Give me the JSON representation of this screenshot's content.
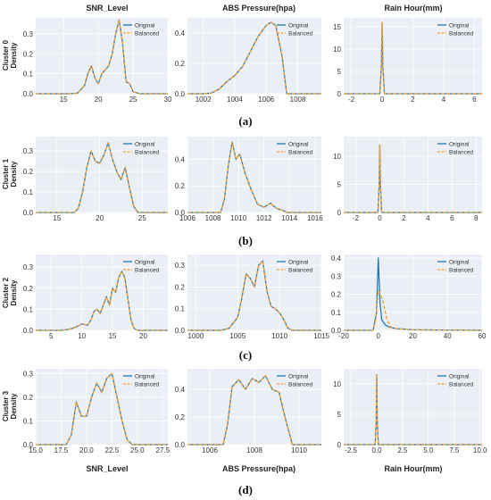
{
  "figure": {
    "column_titles": [
      "SNR_Level",
      "ABS Pressure(hpa)",
      "Rain Hour(mm)"
    ],
    "bottom_xlabels": [
      "SNR_Level",
      "ABS Pressure(hpa)",
      "Rain Hour(mm)"
    ],
    "panel_labels": [
      "(a)",
      "(b)",
      "(c)",
      "(d)"
    ],
    "row_labels": [
      "Cluster 0",
      "Cluster 1",
      "Cluster 2",
      "Cluster 3"
    ],
    "ylabel": "Density",
    "legend": [
      "Original",
      "Balanced"
    ]
  },
  "colors": {
    "original": "#1f77b4",
    "balanced": "#f0a030",
    "background": "#eaeef5",
    "grid": "#ffffff"
  },
  "chart_data": [
    {
      "type": "line",
      "row": 0,
      "col": 0,
      "xlim": [
        11,
        30
      ],
      "ylim": [
        0,
        0.38
      ],
      "xticks": [
        15,
        20,
        25,
        30
      ],
      "yticks": [
        0.0,
        0.1,
        0.2,
        0.3
      ],
      "series": [
        {
          "name": "Original",
          "x": [
            11,
            16,
            17,
            18,
            18.5,
            19,
            19.5,
            20,
            20.5,
            21,
            21.5,
            22,
            22.5,
            23,
            23.5,
            24,
            24.5,
            25,
            26,
            30
          ],
          "y": [
            0,
            0,
            0.003,
            0.04,
            0.1,
            0.14,
            0.08,
            0.05,
            0.1,
            0.12,
            0.14,
            0.2,
            0.3,
            0.37,
            0.25,
            0.06,
            0.05,
            0.01,
            0,
            0
          ]
        },
        {
          "name": "Balanced",
          "x": [
            11,
            16,
            17,
            18,
            18.5,
            19,
            19.5,
            20,
            20.5,
            21,
            21.5,
            22,
            22.5,
            23,
            23.5,
            24,
            24.5,
            25,
            26,
            30
          ],
          "y": [
            0,
            0,
            0.003,
            0.04,
            0.1,
            0.14,
            0.08,
            0.05,
            0.1,
            0.12,
            0.14,
            0.2,
            0.3,
            0.37,
            0.25,
            0.06,
            0.05,
            0.01,
            0,
            0
          ]
        }
      ]
    },
    {
      "type": "line",
      "row": 0,
      "col": 1,
      "xlim": [
        1001,
        1009.5
      ],
      "ylim": [
        0,
        0.5
      ],
      "xticks": [
        1002,
        1004,
        1006,
        1008
      ],
      "yticks": [
        0.0,
        0.2,
        0.4
      ],
      "series": [
        {
          "name": "Original",
          "x": [
            1001,
            1002,
            1002.5,
            1003,
            1003.5,
            1004,
            1004.5,
            1005,
            1005.5,
            1006,
            1006.3,
            1006.6,
            1007,
            1007.3,
            1009.5
          ],
          "y": [
            0,
            0,
            0.004,
            0.03,
            0.08,
            0.12,
            0.18,
            0.28,
            0.38,
            0.45,
            0.47,
            0.45,
            0.25,
            0,
            0
          ]
        },
        {
          "name": "Balanced",
          "x": [
            1001,
            1002,
            1002.5,
            1003,
            1003.5,
            1004,
            1004.5,
            1005,
            1005.5,
            1006,
            1006.3,
            1006.6,
            1007,
            1007.3,
            1009.5
          ],
          "y": [
            0,
            0,
            0.004,
            0.03,
            0.08,
            0.12,
            0.18,
            0.28,
            0.38,
            0.45,
            0.47,
            0.45,
            0.25,
            0,
            0
          ]
        }
      ]
    },
    {
      "type": "line",
      "row": 0,
      "col": 2,
      "xlim": [
        -2.5,
        6.5
      ],
      "ylim": [
        0,
        17
      ],
      "xticks": [
        -2,
        0,
        2,
        4,
        6
      ],
      "yticks": [
        0,
        5,
        10,
        15
      ],
      "series": [
        {
          "name": "Original",
          "x": [
            -2.5,
            -0.15,
            -0.05,
            0,
            0.05,
            0.15,
            6.5
          ],
          "y": [
            0,
            0,
            6,
            16,
            6,
            0,
            0
          ]
        },
        {
          "name": "Balanced",
          "x": [
            -2.5,
            -0.15,
            -0.05,
            0,
            0.05,
            0.15,
            6.5
          ],
          "y": [
            0,
            0,
            6,
            16,
            6,
            0,
            0
          ]
        }
      ]
    },
    {
      "type": "line",
      "row": 1,
      "col": 0,
      "xlim": [
        12.5,
        28
      ],
      "ylim": [
        0,
        0.37
      ],
      "xticks": [
        15,
        20,
        25
      ],
      "yticks": [
        0.0,
        0.1,
        0.2,
        0.3
      ],
      "series": [
        {
          "name": "Original",
          "x": [
            12.5,
            17,
            17.5,
            18,
            18.5,
            19,
            19.5,
            20,
            20.5,
            21,
            21.5,
            22,
            22.5,
            23,
            23.5,
            24,
            24.5,
            28
          ],
          "y": [
            0,
            0,
            0.02,
            0.1,
            0.22,
            0.3,
            0.25,
            0.24,
            0.28,
            0.34,
            0.26,
            0.2,
            0.16,
            0.22,
            0.12,
            0.03,
            0,
            0
          ]
        },
        {
          "name": "Balanced",
          "x": [
            12.5,
            17,
            17.5,
            18,
            18.5,
            19,
            19.5,
            20,
            20.5,
            21,
            21.5,
            22,
            22.5,
            23,
            23.5,
            24,
            24.5,
            28
          ],
          "y": [
            0,
            0,
            0.02,
            0.1,
            0.22,
            0.3,
            0.25,
            0.24,
            0.28,
            0.34,
            0.26,
            0.2,
            0.16,
            0.22,
            0.12,
            0.03,
            0,
            0
          ]
        }
      ]
    },
    {
      "type": "line",
      "row": 1,
      "col": 1,
      "xlim": [
        1006,
        1016.5
      ],
      "ylim": [
        0,
        0.57
      ],
      "xticks": [
        1006,
        1008,
        1010,
        1012,
        1014,
        1016
      ],
      "yticks": [
        0.0,
        0.2,
        0.4
      ],
      "series": [
        {
          "name": "Original",
          "x": [
            1006,
            1008.6,
            1008.9,
            1009.2,
            1009.5,
            1009.8,
            1010.1,
            1010.5,
            1011,
            1011.5,
            1012,
            1012.5,
            1013,
            1013.5,
            1013.8,
            1016.5
          ],
          "y": [
            0,
            0,
            0.1,
            0.35,
            0.53,
            0.4,
            0.44,
            0.3,
            0.17,
            0.06,
            0.04,
            0.07,
            0.03,
            0.015,
            0,
            0
          ]
        },
        {
          "name": "Balanced",
          "x": [
            1006,
            1008.6,
            1008.9,
            1009.2,
            1009.5,
            1009.8,
            1010.1,
            1010.5,
            1011,
            1011.5,
            1012,
            1012.5,
            1013,
            1013.5,
            1013.8,
            1016.5
          ],
          "y": [
            0,
            0,
            0.1,
            0.35,
            0.53,
            0.4,
            0.44,
            0.3,
            0.17,
            0.06,
            0.04,
            0.07,
            0.03,
            0.015,
            0,
            0
          ]
        }
      ]
    },
    {
      "type": "line",
      "row": 1,
      "col": 2,
      "xlim": [
        -3,
        8.5
      ],
      "ylim": [
        0,
        13.5
      ],
      "xticks": [
        -2,
        0,
        2,
        4,
        6,
        8
      ],
      "yticks": [
        0,
        5,
        10
      ],
      "series": [
        {
          "name": "Original",
          "x": [
            -3,
            -0.15,
            -0.05,
            0,
            0.05,
            0.15,
            8.5
          ],
          "y": [
            0,
            0,
            5,
            12,
            5,
            0,
            0
          ]
        },
        {
          "name": "Balanced",
          "x": [
            -3,
            -0.15,
            -0.05,
            0,
            0.05,
            0.15,
            8.5
          ],
          "y": [
            0,
            0,
            5,
            12,
            5,
            0,
            0
          ]
        }
      ]
    },
    {
      "type": "line",
      "row": 2,
      "col": 0,
      "xlim": [
        2.5,
        24
      ],
      "ylim": [
        0,
        0.36
      ],
      "xticks": [
        5,
        10,
        15,
        20
      ],
      "yticks": [
        0.0,
        0.1,
        0.2,
        0.3
      ],
      "series": [
        {
          "name": "Original",
          "x": [
            2.5,
            6.5,
            8,
            9,
            10,
            11,
            11.5,
            12,
            12.5,
            13,
            13.5,
            14,
            14.5,
            15,
            15.5,
            16,
            16.5,
            17,
            17.5,
            18,
            18.5,
            19,
            24
          ],
          "y": [
            0,
            0,
            0.005,
            0.015,
            0.03,
            0.025,
            0.05,
            0.09,
            0.1,
            0.08,
            0.12,
            0.16,
            0.12,
            0.2,
            0.18,
            0.25,
            0.28,
            0.25,
            0.15,
            0.05,
            0.01,
            0,
            0
          ]
        },
        {
          "name": "Balanced",
          "x": [
            2.5,
            6.5,
            8,
            9,
            10,
            11,
            11.5,
            12,
            12.5,
            13,
            13.5,
            14,
            14.5,
            15,
            15.5,
            16,
            16.5,
            17,
            17.5,
            18,
            18.5,
            19,
            24
          ],
          "y": [
            0,
            0,
            0.005,
            0.015,
            0.03,
            0.025,
            0.05,
            0.09,
            0.1,
            0.08,
            0.12,
            0.16,
            0.12,
            0.2,
            0.18,
            0.25,
            0.28,
            0.25,
            0.15,
            0.05,
            0.01,
            0,
            0
          ]
        }
      ]
    },
    {
      "type": "line",
      "row": 2,
      "col": 1,
      "xlim": [
        999,
        1015
      ],
      "ylim": [
        0,
        0.35
      ],
      "xticks": [
        1000,
        1005,
        1010,
        1015
      ],
      "yticks": [
        0.0,
        0.1,
        0.2,
        0.3
      ],
      "series": [
        {
          "name": "Original",
          "x": [
            999,
            1003,
            1004,
            1005,
            1005.5,
            1006,
            1006.5,
            1007,
            1007.5,
            1008,
            1008.5,
            1009,
            1009.5,
            1010,
            1010.5,
            1011,
            1011.5,
            1015
          ],
          "y": [
            0,
            0,
            0.01,
            0.06,
            0.15,
            0.26,
            0.24,
            0.2,
            0.3,
            0.32,
            0.18,
            0.11,
            0.1,
            0.08,
            0.05,
            0.01,
            0,
            0
          ]
        },
        {
          "name": "Balanced",
          "x": [
            999,
            1003,
            1004,
            1005,
            1005.5,
            1006,
            1006.5,
            1007,
            1007.5,
            1008,
            1008.5,
            1009,
            1009.5,
            1010,
            1010.5,
            1011,
            1011.5,
            1015
          ],
          "y": [
            0,
            0,
            0.01,
            0.06,
            0.15,
            0.26,
            0.24,
            0.2,
            0.3,
            0.32,
            0.18,
            0.11,
            0.1,
            0.08,
            0.05,
            0.01,
            0,
            0
          ]
        }
      ]
    },
    {
      "type": "line",
      "row": 2,
      "col": 2,
      "xlim": [
        -20,
        60
      ],
      "ylim": [
        0,
        0.42
      ],
      "xticks": [
        -20,
        0,
        20,
        40,
        60
      ],
      "yticks": [
        0.0,
        0.1,
        0.2,
        0.3,
        0.4
      ],
      "series": [
        {
          "name": "Original",
          "x": [
            -20,
            -3,
            -1,
            0,
            1,
            2,
            4,
            6,
            10,
            20,
            60
          ],
          "y": [
            0,
            0,
            0.1,
            0.4,
            0.15,
            0.06,
            0.03,
            0.02,
            0.01,
            0.003,
            0
          ]
        },
        {
          "name": "Balanced",
          "x": [
            -20,
            -3,
            -1.5,
            0,
            1.5,
            3,
            5,
            7,
            10,
            20,
            60
          ],
          "y": [
            0,
            0,
            0.06,
            0.22,
            0.2,
            0.15,
            0.06,
            0.02,
            0.01,
            0.003,
            0
          ]
        }
      ]
    },
    {
      "type": "line",
      "row": 3,
      "col": 0,
      "xlim": [
        15,
        28
      ],
      "ylim": [
        0,
        0.32
      ],
      "xticks": [
        15.0,
        17.5,
        20.0,
        22.5,
        25.0,
        27.5
      ],
      "yticks": [
        0.0,
        0.1,
        0.2,
        0.3
      ],
      "series": [
        {
          "name": "Original",
          "x": [
            15,
            18,
            18.5,
            19,
            19.5,
            20,
            20.5,
            21,
            21.5,
            22,
            22.5,
            23,
            23.5,
            24,
            24.5,
            28
          ],
          "y": [
            0,
            0,
            0.04,
            0.18,
            0.12,
            0.12,
            0.2,
            0.26,
            0.22,
            0.28,
            0.3,
            0.2,
            0.1,
            0.02,
            0,
            0
          ]
        },
        {
          "name": "Balanced",
          "x": [
            15,
            18,
            18.5,
            19,
            19.5,
            20,
            20.5,
            21,
            21.5,
            22,
            22.5,
            23,
            23.5,
            24,
            24.5,
            28
          ],
          "y": [
            0,
            0,
            0.04,
            0.18,
            0.12,
            0.12,
            0.2,
            0.26,
            0.22,
            0.28,
            0.3,
            0.2,
            0.1,
            0.02,
            0,
            0
          ]
        }
      ]
    },
    {
      "type": "line",
      "row": 3,
      "col": 1,
      "xlim": [
        1005,
        1011
      ],
      "ylim": [
        0,
        0.55
      ],
      "xticks": [
        1006,
        1008,
        1010
      ],
      "yticks": [
        0.0,
        0.2,
        0.4
      ],
      "series": [
        {
          "name": "Original",
          "x": [
            1005,
            1006.6,
            1006.8,
            1007,
            1007.3,
            1007.6,
            1007.9,
            1008.2,
            1008.5,
            1008.8,
            1009.1,
            1009.4,
            1009.7,
            1011
          ],
          "y": [
            0,
            0,
            0.15,
            0.42,
            0.47,
            0.4,
            0.48,
            0.45,
            0.5,
            0.4,
            0.38,
            0.18,
            0,
            0
          ]
        },
        {
          "name": "Balanced",
          "x": [
            1005,
            1006.6,
            1006.8,
            1007,
            1007.3,
            1007.6,
            1007.9,
            1008.2,
            1008.5,
            1008.8,
            1009.1,
            1009.4,
            1009.7,
            1011
          ],
          "y": [
            0,
            0,
            0.15,
            0.42,
            0.47,
            0.4,
            0.48,
            0.45,
            0.5,
            0.4,
            0.38,
            0.18,
            0,
            0
          ]
        }
      ]
    },
    {
      "type": "line",
      "row": 3,
      "col": 2,
      "xlim": [
        -3.2,
        10.2
      ],
      "ylim": [
        0,
        12.5
      ],
      "xticks": [
        -2.5,
        0.0,
        2.5,
        5.0,
        7.5,
        10.0
      ],
      "yticks": [
        0,
        5,
        10
      ],
      "series": [
        {
          "name": "Original",
          "x": [
            -3.2,
            -0.15,
            -0.05,
            0,
            0.05,
            0.15,
            10.2
          ],
          "y": [
            0,
            0,
            4,
            11.5,
            4,
            0,
            0
          ]
        },
        {
          "name": "Balanced",
          "x": [
            -3.2,
            -0.15,
            -0.05,
            0,
            0.05,
            0.15,
            10.2
          ],
          "y": [
            0,
            0,
            4,
            11.5,
            4,
            0,
            0
          ]
        }
      ]
    }
  ]
}
